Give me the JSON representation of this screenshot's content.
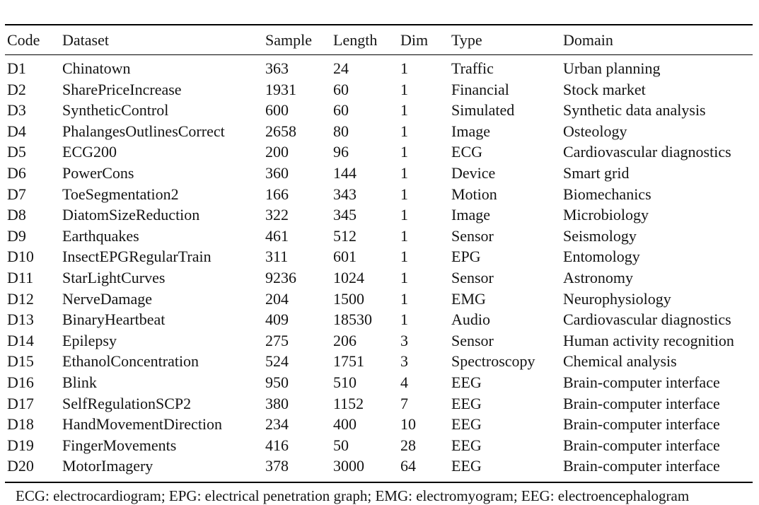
{
  "page": {
    "background_color": "#ffffff",
    "text_color": "#141414",
    "rule_color": "#000000"
  },
  "table": {
    "columns": [
      "Code",
      "Dataset",
      "Sample",
      "Length",
      "Dim",
      "Type",
      "Domain"
    ],
    "rows": [
      [
        "D1",
        "Chinatown",
        "363",
        "24",
        "1",
        "Traffic",
        "Urban planning"
      ],
      [
        "D2",
        "SharePriceIncrease",
        "1931",
        "60",
        "1",
        "Financial",
        "Stock market"
      ],
      [
        "D3",
        "SyntheticControl",
        "600",
        "60",
        "1",
        "Simulated",
        "Synthetic data analysis"
      ],
      [
        "D4",
        "PhalangesOutlinesCorrect",
        "2658",
        "80",
        "1",
        "Image",
        "Osteology"
      ],
      [
        "D5",
        "ECG200",
        "200",
        "96",
        "1",
        "ECG",
        "Cardiovascular diagnostics"
      ],
      [
        "D6",
        "PowerCons",
        "360",
        "144",
        "1",
        "Device",
        "Smart grid"
      ],
      [
        "D7",
        "ToeSegmentation2",
        "166",
        "343",
        "1",
        "Motion",
        "Biomechanics"
      ],
      [
        "D8",
        "DiatomSizeReduction",
        "322",
        "345",
        "1",
        "Image",
        "Microbiology"
      ],
      [
        "D9",
        "Earthquakes",
        "461",
        "512",
        "1",
        "Sensor",
        "Seismology"
      ],
      [
        "D10",
        "InsectEPGRegularTrain",
        "311",
        "601",
        "1",
        "EPG",
        "Entomology"
      ],
      [
        "D11",
        "StarLightCurves",
        "9236",
        "1024",
        "1",
        "Sensor",
        "Astronomy"
      ],
      [
        "D12",
        "NerveDamage",
        "204",
        "1500",
        "1",
        "EMG",
        "Neurophysiology"
      ],
      [
        "D13",
        "BinaryHeartbeat",
        "409",
        "18530",
        "1",
        "Audio",
        "Cardiovascular diagnostics"
      ],
      [
        "D14",
        "Epilepsy",
        "275",
        "206",
        "3",
        "Sensor",
        "Human activity recognition"
      ],
      [
        "D15",
        "EthanolConcentration",
        "524",
        "1751",
        "3",
        "Spectroscopy",
        "Chemical analysis"
      ],
      [
        "D16",
        "Blink",
        "950",
        "510",
        "4",
        "EEG",
        "Brain-computer interface"
      ],
      [
        "D17",
        "SelfRegulationSCP2",
        "380",
        "1152",
        "7",
        "EEG",
        "Brain-computer interface"
      ],
      [
        "D18",
        "HandMovementDirection",
        "234",
        "400",
        "10",
        "EEG",
        "Brain-computer interface"
      ],
      [
        "D19",
        "FingerMovements",
        "416",
        "50",
        "28",
        "EEG",
        "Brain-computer interface"
      ],
      [
        "D20",
        "MotorImagery",
        "378",
        "3000",
        "64",
        "EEG",
        "Brain-computer interface"
      ]
    ],
    "footnote": "ECG: electrocardiogram; EPG: electrical penetration graph; EMG: electromyogram; EEG: electroencephalogram"
  }
}
